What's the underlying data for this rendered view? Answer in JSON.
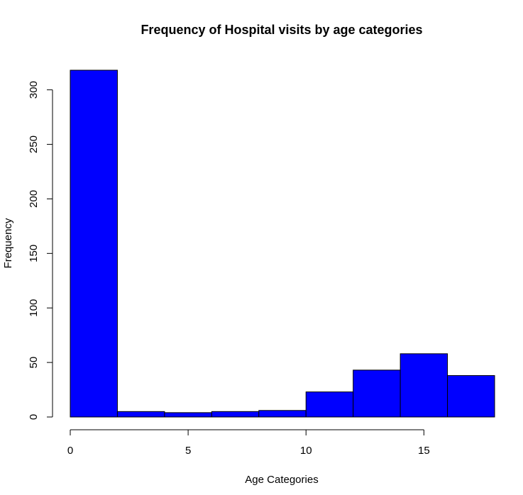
{
  "chart_data": {
    "type": "bar",
    "title": "Frequency of Hospital visits by age categories",
    "xlabel": "Age Categories",
    "ylabel": "Frequency",
    "bin_edges": [
      0,
      2,
      4,
      6,
      8,
      10,
      12,
      14,
      16,
      18
    ],
    "values": [
      318,
      5,
      4,
      5,
      6,
      23,
      43,
      58,
      38
    ],
    "xlim": [
      0,
      18
    ],
    "ylim": [
      0,
      318
    ],
    "x_ticks": [
      0,
      5,
      10,
      15
    ],
    "x_tick_labels": [
      "0",
      "5",
      "10",
      "15"
    ],
    "y_ticks": [
      0,
      50,
      100,
      150,
      200,
      250,
      300
    ],
    "y_tick_labels": [
      "0",
      "50",
      "100",
      "150",
      "200",
      "250",
      "300"
    ],
    "bar_color": "#0000ff",
    "grid": false,
    "legend": "none"
  }
}
